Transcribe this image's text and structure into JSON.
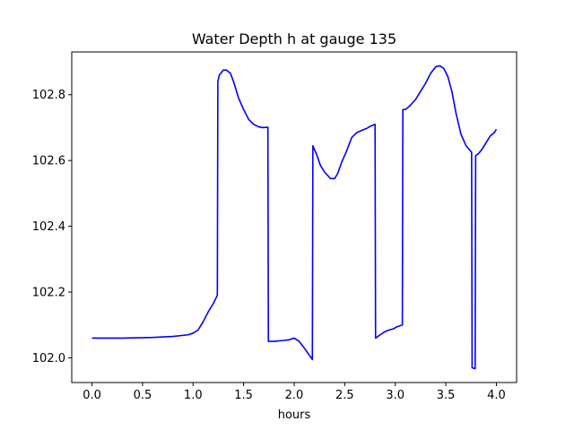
{
  "chart_data": {
    "type": "line",
    "title": "Water Depth h at gauge 135",
    "xlabel": "hours",
    "ylabel": "",
    "xlim": [
      -0.2,
      4.2
    ],
    "ylim": [
      101.925,
      102.93
    ],
    "x_ticks": [
      0.0,
      0.5,
      1.0,
      1.5,
      2.0,
      2.5,
      3.0,
      3.5,
      4.0
    ],
    "x_tick_labels": [
      "0.0",
      "0.5",
      "1.0",
      "1.5",
      "2.0",
      "2.5",
      "3.0",
      "3.5",
      "4.0"
    ],
    "y_ticks": [
      102.0,
      102.2,
      102.4,
      102.6,
      102.8
    ],
    "y_tick_labels": [
      "102.0",
      "102.2",
      "102.4",
      "102.6",
      "102.8"
    ],
    "grid": false,
    "line_color": "#0000ff",
    "series": [
      {
        "points": [
          [
            0.0,
            102.06
          ],
          [
            0.3,
            102.06
          ],
          [
            0.6,
            102.062
          ],
          [
            0.8,
            102.065
          ],
          [
            0.95,
            102.07
          ],
          [
            1.0,
            102.075
          ],
          [
            1.05,
            102.085
          ],
          [
            1.1,
            102.11
          ],
          [
            1.15,
            102.14
          ],
          [
            1.2,
            102.165
          ],
          [
            1.24,
            102.19
          ],
          [
            1.245,
            102.84
          ],
          [
            1.26,
            102.86
          ],
          [
            1.3,
            102.875
          ],
          [
            1.33,
            102.875
          ],
          [
            1.37,
            102.865
          ],
          [
            1.4,
            102.84
          ],
          [
            1.45,
            102.79
          ],
          [
            1.5,
            102.755
          ],
          [
            1.55,
            102.725
          ],
          [
            1.6,
            102.71
          ],
          [
            1.65,
            102.702
          ],
          [
            1.69,
            102.7
          ],
          [
            1.74,
            102.701
          ],
          [
            1.745,
            102.05
          ],
          [
            1.8,
            102.05
          ],
          [
            1.9,
            102.053
          ],
          [
            1.95,
            102.055
          ],
          [
            2.0,
            102.06
          ],
          [
            2.05,
            102.05
          ],
          [
            2.1,
            102.03
          ],
          [
            2.15,
            102.008
          ],
          [
            2.18,
            101.995
          ],
          [
            2.185,
            102.645
          ],
          [
            2.22,
            102.62
          ],
          [
            2.26,
            102.585
          ],
          [
            2.3,
            102.565
          ],
          [
            2.33,
            102.555
          ],
          [
            2.36,
            102.545
          ],
          [
            2.4,
            102.545
          ],
          [
            2.43,
            102.56
          ],
          [
            2.47,
            102.595
          ],
          [
            2.52,
            102.63
          ],
          [
            2.57,
            102.67
          ],
          [
            2.62,
            102.685
          ],
          [
            2.68,
            102.693
          ],
          [
            2.72,
            102.698
          ],
          [
            2.76,
            102.705
          ],
          [
            2.8,
            102.71
          ],
          [
            2.805,
            102.06
          ],
          [
            2.85,
            102.07
          ],
          [
            2.9,
            102.08
          ],
          [
            2.94,
            102.085
          ],
          [
            2.98,
            102.088
          ],
          [
            3.02,
            102.095
          ],
          [
            3.07,
            102.1
          ],
          [
            3.075,
            102.755
          ],
          [
            3.1,
            102.755
          ],
          [
            3.14,
            102.765
          ],
          [
            3.2,
            102.785
          ],
          [
            3.25,
            102.81
          ],
          [
            3.3,
            102.835
          ],
          [
            3.35,
            102.865
          ],
          [
            3.4,
            102.885
          ],
          [
            3.44,
            102.888
          ],
          [
            3.48,
            102.88
          ],
          [
            3.52,
            102.855
          ],
          [
            3.56,
            102.81
          ],
          [
            3.6,
            102.745
          ],
          [
            3.65,
            102.68
          ],
          [
            3.7,
            102.645
          ],
          [
            3.755,
            102.625
          ],
          [
            3.76,
            101.97
          ],
          [
            3.79,
            101.967
          ],
          [
            3.795,
            102.615
          ],
          [
            3.82,
            102.62
          ],
          [
            3.86,
            102.635
          ],
          [
            3.9,
            102.655
          ],
          [
            3.94,
            102.675
          ],
          [
            3.98,
            102.685
          ],
          [
            4.0,
            102.695
          ]
        ]
      }
    ]
  }
}
